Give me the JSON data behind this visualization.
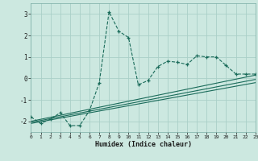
{
  "xlabel": "Humidex (Indice chaleur)",
  "bg_color": "#cce8e0",
  "grid_color": "#aacfc8",
  "line_color": "#1a6b5a",
  "x_min": 0,
  "x_max": 23,
  "y_min": -2.5,
  "y_max": 3.5,
  "yticks": [
    -2,
    -1,
    0,
    1,
    2,
    3
  ],
  "xticks": [
    0,
    1,
    2,
    3,
    4,
    5,
    6,
    7,
    8,
    9,
    10,
    11,
    12,
    13,
    14,
    15,
    16,
    17,
    18,
    19,
    20,
    21,
    22,
    23
  ],
  "series1_x": [
    0,
    1,
    2,
    3,
    4,
    5,
    6,
    7,
    8,
    9,
    10,
    11,
    12,
    13,
    14,
    15,
    16,
    17,
    18,
    19,
    20,
    21,
    22,
    23
  ],
  "series1_y": [
    -1.8,
    -2.1,
    -1.9,
    -1.6,
    -2.2,
    -2.2,
    -1.5,
    -0.2,
    3.1,
    2.2,
    1.9,
    -0.3,
    -0.1,
    0.55,
    0.8,
    0.75,
    0.65,
    1.05,
    1.0,
    1.0,
    0.6,
    0.2,
    0.2,
    0.2
  ],
  "line1_x": [
    0,
    23
  ],
  "line1_y": [
    -2.0,
    0.15
  ],
  "line2_x": [
    0,
    23
  ],
  "line2_y": [
    -2.05,
    -0.05
  ],
  "line3_x": [
    0,
    23
  ],
  "line3_y": [
    -2.1,
    -0.2
  ]
}
